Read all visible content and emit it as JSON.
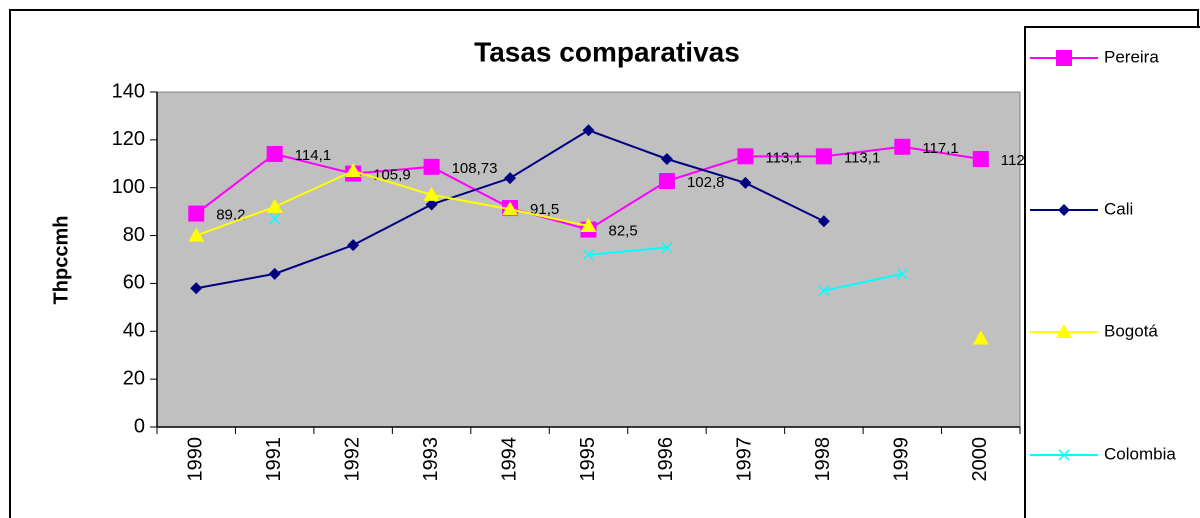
{
  "chart_data": {
    "type": "line",
    "title": "Tasas comparativas",
    "y_label": "Thpccmh",
    "categories": [
      "1990",
      "1991",
      "1992",
      "1993",
      "1994",
      "1995",
      "1996",
      "1997",
      "1998",
      "1999",
      "2000"
    ],
    "series": [
      {
        "name": "Pereira",
        "color": "#ff00ff",
        "marker": "square",
        "values": [
          89.2,
          114.1,
          105.9,
          108.73,
          91.5,
          82.5,
          102.8,
          113.1,
          113.1,
          117.1,
          112
        ],
        "value_labels": [
          "89,2",
          "114,1",
          "105,9",
          "108,73",
          "91,5",
          "82,5",
          "102,8",
          "113,1",
          "113,1",
          "117,1",
          "112"
        ]
      },
      {
        "name": "Cali",
        "color": "#000080",
        "marker": "diamond",
        "values": [
          58,
          64,
          76,
          93,
          104,
          124,
          112,
          102,
          86,
          null,
          null
        ]
      },
      {
        "name": "Bogotá",
        "color": "#ffff00",
        "marker": "triangle",
        "values": [
          80,
          92,
          107,
          97,
          91,
          84,
          null,
          null,
          null,
          null,
          37
        ]
      },
      {
        "name": "Colombia",
        "color": "#00ffff",
        "marker": "x",
        "values": [
          null,
          87,
          null,
          null,
          null,
          72,
          75,
          null,
          57,
          64,
          null
        ]
      }
    ],
    "ylim": [
      0,
      140
    ],
    "yticks": [
      0,
      20,
      40,
      60,
      80,
      100,
      120,
      140
    ],
    "grid": false,
    "legend": "right"
  }
}
